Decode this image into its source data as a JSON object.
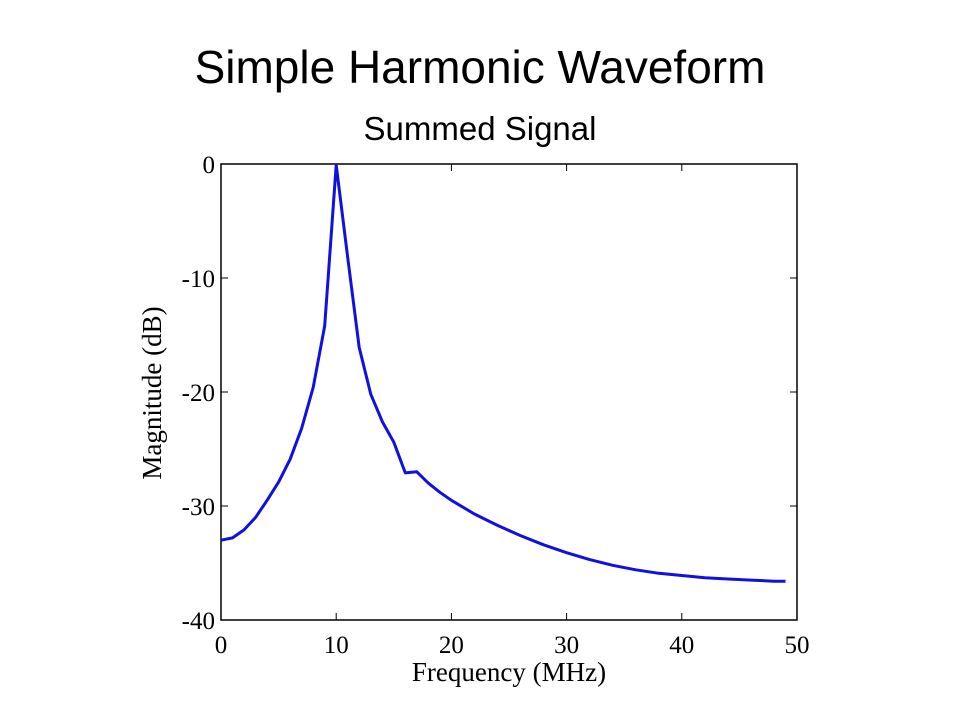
{
  "slide": {
    "title": "Simple Harmonic Waveform",
    "subtitle": "Summed Signal"
  },
  "chart_data": {
    "type": "line",
    "title": "Simple Harmonic Waveform",
    "subtitle": "Summed Signal",
    "xlabel": "Frequency (MHz)",
    "ylabel": "Magnitude (dB)",
    "xlim": [
      0,
      50
    ],
    "ylim": [
      -40,
      0
    ],
    "xticks": [
      0,
      10,
      20,
      30,
      40,
      50
    ],
    "yticks": [
      0,
      -10,
      -20,
      -30,
      -40
    ],
    "grid": false,
    "line_color": "#1010e0",
    "series": [
      {
        "x": [
          0,
          1,
          2,
          3,
          4,
          5,
          6,
          7,
          8,
          9,
          10,
          11,
          12,
          13,
          14,
          15,
          16,
          17,
          18,
          19,
          20,
          22,
          24,
          26,
          28,
          30,
          32,
          34,
          36,
          38,
          40,
          42,
          44,
          46,
          48,
          49
        ],
        "y": [
          -33.0,
          -32.8,
          -32.1,
          -31.0,
          -29.5,
          -27.9,
          -25.9,
          -23.2,
          -19.6,
          -14.2,
          -0.1,
          -8.2,
          -16.1,
          -20.2,
          -22.6,
          -24.4,
          -27.1,
          -27.0,
          -28.0,
          -28.8,
          -29.5,
          -30.7,
          -31.7,
          -32.6,
          -33.4,
          -34.1,
          -34.7,
          -35.2,
          -35.6,
          -35.9,
          -36.1,
          -36.3,
          -36.4,
          -36.5,
          -36.6,
          -36.6
        ]
      }
    ]
  }
}
